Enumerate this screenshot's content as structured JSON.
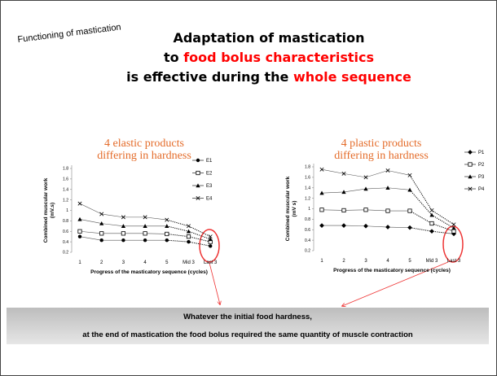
{
  "slide": {
    "corner_label": "Functioning of mastication",
    "title": [
      "Adaptation of mastication",
      "to",
      "food bolus characteristics",
      "is effective during the",
      "whole sequence"
    ],
    "conclusion": [
      "Whatever the initial food hardness,",
      "at the end of mastication the food bolus required the same quantity of muscle contraction"
    ]
  },
  "chart_data": [
    {
      "type": "line",
      "annotation": [
        "4 elastic products",
        "differing in hardness"
      ],
      "ylabel": [
        "Combined muscular work",
        "(mV.s)"
      ],
      "xlabel": "Progress of the masticatory sequence (cycles)",
      "categories": [
        "1",
        "2",
        "3",
        "4",
        "5",
        "Mid 3",
        "Last 3"
      ],
      "ylim": [
        0.2,
        1.8
      ],
      "yticks": [
        0.2,
        0.4,
        0.6,
        0.8,
        1,
        1.2,
        1.4,
        1.6,
        1.8
      ],
      "series": [
        {
          "name": "E1",
          "color": "#000000",
          "marker": "circle",
          "values": [
            0.5,
            0.43,
            0.43,
            0.43,
            0.43,
            0.4,
            0.32
          ]
        },
        {
          "name": "E2",
          "color": "#000000",
          "marker": "square",
          "values": [
            0.6,
            0.56,
            0.56,
            0.56,
            0.55,
            0.5,
            0.4
          ]
        },
        {
          "name": "E3",
          "color": "#000000",
          "marker": "triangle",
          "values": [
            0.83,
            0.75,
            0.7,
            0.7,
            0.7,
            0.6,
            0.45
          ]
        },
        {
          "name": "E4",
          "color": "#000000",
          "marker": "x",
          "values": [
            1.13,
            0.93,
            0.87,
            0.87,
            0.82,
            0.7,
            0.5
          ]
        }
      ]
    },
    {
      "type": "line",
      "annotation": [
        "4 plastic products",
        "differing in hardness"
      ],
      "ylabel": [
        "Combined muscular work",
        "(mV s)"
      ],
      "xlabel": "Progress of the masticatory sequence (cycles)",
      "categories": [
        "1",
        "2",
        "3",
        "4",
        "5",
        "Mid 3",
        "Last 3"
      ],
      "ylim": [
        0.2,
        1.8
      ],
      "yticks": [
        0.2,
        0.4,
        0.6,
        0.8,
        1,
        1.2,
        1.4,
        1.6,
        1.8
      ],
      "series": [
        {
          "name": "P1",
          "color": "#000000",
          "marker": "diamond",
          "values": [
            0.68,
            0.68,
            0.67,
            0.65,
            0.64,
            0.57,
            0.52
          ]
        },
        {
          "name": "P2",
          "color": "#000000",
          "marker": "square",
          "values": [
            0.98,
            0.97,
            0.98,
            0.96,
            0.96,
            0.72,
            0.57
          ]
        },
        {
          "name": "P3",
          "color": "#000000",
          "marker": "triangle",
          "values": [
            1.3,
            1.32,
            1.38,
            1.4,
            1.36,
            0.88,
            0.63
          ]
        },
        {
          "name": "P4",
          "color": "#000000",
          "marker": "x",
          "values": [
            1.75,
            1.67,
            1.6,
            1.73,
            1.64,
            0.97,
            0.7
          ]
        }
      ]
    }
  ]
}
